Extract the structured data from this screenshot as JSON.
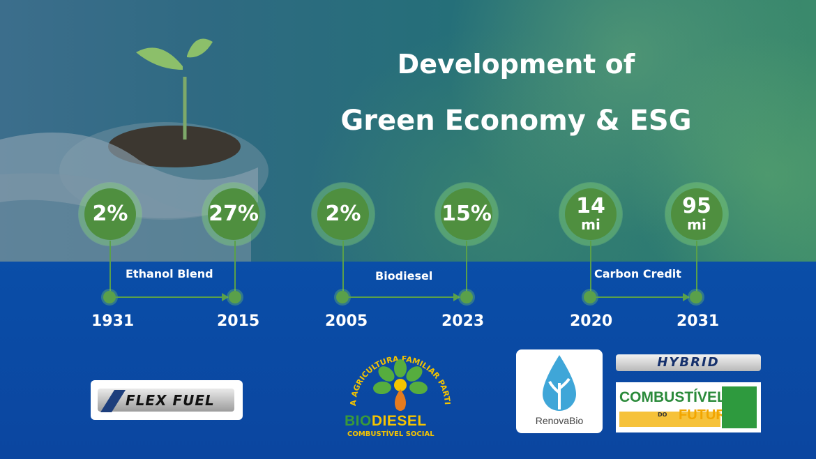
{
  "title": {
    "line1": "Development of",
    "line2": "Green Economy & ESG"
  },
  "groups": [
    {
      "label": "Ethanol Blend",
      "start": {
        "value": "2%",
        "year": "1931"
      },
      "end": {
        "value": "27%",
        "year": "2015"
      }
    },
    {
      "label": "Biodiesel",
      "start": {
        "value": "2%",
        "year": "2005"
      },
      "end": {
        "value": "15%",
        "year": "2023"
      }
    },
    {
      "label": "Carbon Credit",
      "start": {
        "value": "14",
        "unit": "mi",
        "year": "2020"
      },
      "end": {
        "value": "95",
        "unit": "mi",
        "year": "2031"
      }
    }
  ],
  "logos": {
    "flex_fuel": "FLEX FUEL",
    "biodiesel_ring": "A AGRICULTURA FAMILIAR PARTICIPA",
    "biodiesel_bio": "BIO",
    "biodiesel_diesel": "DIESEL",
    "biodiesel_sub": "COMBUSTÍVEL SOCIAL",
    "renovabio": "RenovaBio",
    "hybrid": "HYBRID",
    "combustivel": "COMBUSTÍVEL",
    "do": "DO",
    "futuro": "FUTURO"
  },
  "colors": {
    "accent_green": "#4f8f3f",
    "background_blue": "#0a4ea8"
  }
}
